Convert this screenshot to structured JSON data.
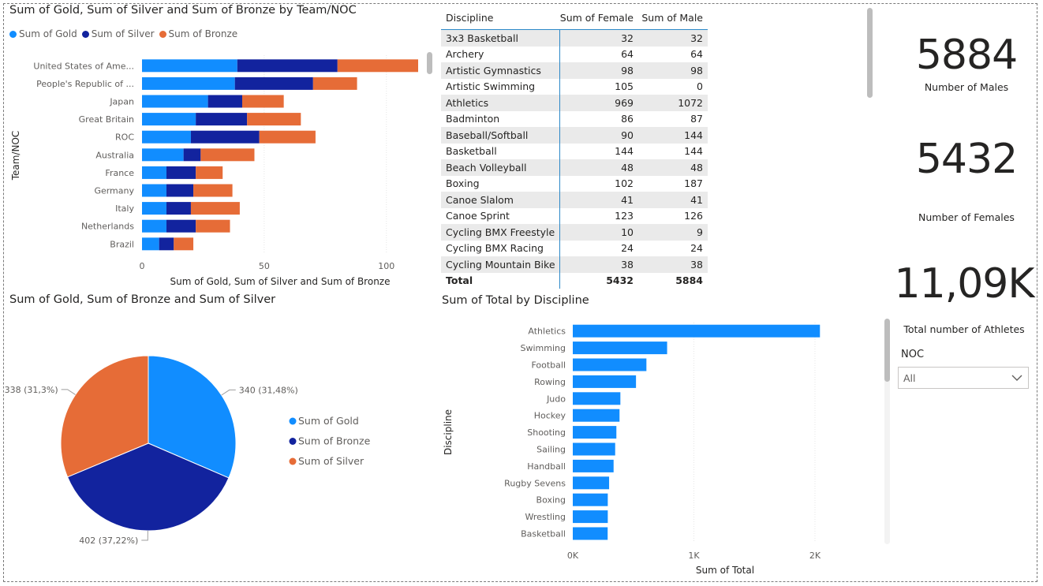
{
  "colors": {
    "gold": "#118dff",
    "silver": "#12239e",
    "bronze": "#e66c37",
    "bar": "#118dff"
  },
  "stacked": {
    "title": "Sum of Gold, Sum of Silver and Sum of Bronze by Team/NOC",
    "legend": [
      "Sum of Gold",
      "Sum of Silver",
      "Sum of Bronze"
    ],
    "ylabel": "Team/NOC",
    "xlabel": "Sum of Gold, Sum of Silver and Sum of Bronze"
  },
  "pie": {
    "title": "Sum of Gold, Sum of Bronze and Sum of Silver",
    "legend": [
      "Sum of Gold",
      "Sum of Bronze",
      "Sum of Silver"
    ]
  },
  "bars": {
    "title": "Sum of Total by Discipline",
    "ylabel": "Discipline",
    "xlabel": "Sum of Total"
  },
  "table": {
    "headers": [
      "Discipline",
      "Sum of Female",
      "Sum of Male"
    ],
    "rows": [
      [
        "3x3 Basketball",
        "32",
        "32"
      ],
      [
        "Archery",
        "64",
        "64"
      ],
      [
        "Artistic Gymnastics",
        "98",
        "98"
      ],
      [
        "Artistic Swimming",
        "105",
        "0"
      ],
      [
        "Athletics",
        "969",
        "1072"
      ],
      [
        "Badminton",
        "86",
        "87"
      ],
      [
        "Baseball/Softball",
        "90",
        "144"
      ],
      [
        "Basketball",
        "144",
        "144"
      ],
      [
        "Beach Volleyball",
        "48",
        "48"
      ],
      [
        "Boxing",
        "102",
        "187"
      ],
      [
        "Canoe Slalom",
        "41",
        "41"
      ],
      [
        "Canoe Sprint",
        "123",
        "126"
      ],
      [
        "Cycling BMX Freestyle",
        "10",
        "9"
      ],
      [
        "Cycling BMX Racing",
        "24",
        "24"
      ],
      [
        "Cycling Mountain Bike",
        "38",
        "38"
      ]
    ],
    "total": [
      "Total",
      "5432",
      "5884"
    ]
  },
  "cards": {
    "males": {
      "value": "5884",
      "label": "Number of Males"
    },
    "females": {
      "value": "5432",
      "label": "Number of Females"
    },
    "athletes": {
      "value": "11,09K",
      "label": "Total number of Athletes"
    }
  },
  "slicer": {
    "title": "NOC",
    "value": "All"
  },
  "chart_data": [
    {
      "type": "bar",
      "orientation": "horizontal-stacked",
      "title": "Sum of Gold, Sum of Silver and Sum of Bronze by Team/NOC",
      "categories": [
        "United States of Ame...",
        "People's Republic of ...",
        "Japan",
        "Great Britain",
        "ROC",
        "Australia",
        "France",
        "Germany",
        "Italy",
        "Netherlands",
        "Brazil"
      ],
      "series": [
        {
          "name": "Sum of Gold",
          "values": [
            39,
            38,
            27,
            22,
            20,
            17,
            10,
            10,
            10,
            10,
            7
          ]
        },
        {
          "name": "Sum of Silver",
          "values": [
            41,
            32,
            14,
            21,
            28,
            7,
            12,
            11,
            10,
            12,
            6
          ]
        },
        {
          "name": "Sum of Bronze",
          "values": [
            33,
            18,
            17,
            22,
            23,
            22,
            11,
            16,
            20,
            14,
            8
          ]
        }
      ],
      "xlabel": "Sum of Gold, Sum of Silver and Sum of Bronze",
      "ylabel": "Team/NOC",
      "xlim": [
        0,
        113
      ],
      "xticks": [
        0,
        50,
        100
      ],
      "legend": "top-left"
    },
    {
      "type": "pie",
      "title": "Sum of Gold, Sum of Bronze and Sum of Silver",
      "categories": [
        "Sum of Gold",
        "Sum of Bronze",
        "Sum of Silver"
      ],
      "values": [
        340,
        402,
        338
      ],
      "data_labels": [
        "340 (31,48%)",
        "402 (37,22%)",
        "338 (31,3%)"
      ],
      "legend": "right"
    },
    {
      "type": "bar",
      "orientation": "horizontal",
      "title": "Sum of Total by Discipline",
      "categories": [
        "Athletics",
        "Swimming",
        "Football",
        "Rowing",
        "Judo",
        "Hockey",
        "Shooting",
        "Sailing",
        "Handball",
        "Rugby Sevens",
        "Boxing",
        "Wrestling",
        "Basketball"
      ],
      "values": [
        2041,
        779,
        608,
        522,
        393,
        386,
        360,
        350,
        337,
        300,
        289,
        289,
        288
      ],
      "xlabel": "Sum of Total",
      "ylabel": "Discipline",
      "xlim": [
        0,
        2150
      ],
      "xtick_labels": [
        "0K",
        "1K",
        "2K"
      ]
    }
  ]
}
